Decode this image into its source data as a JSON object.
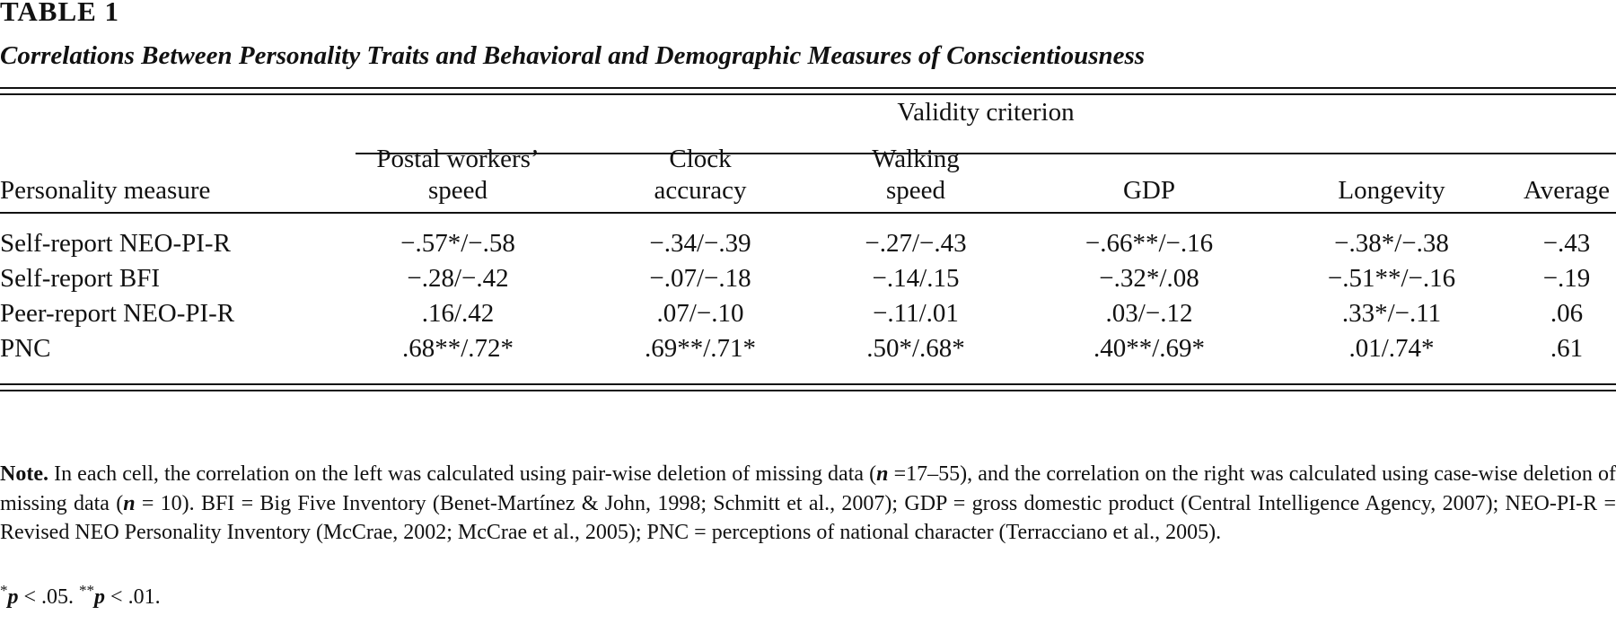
{
  "table_label": "TABLE 1",
  "table_title": "Correlations Between Personality Traits and Behavioral and Demographic Measures of Conscientiousness",
  "spanner_header": "Validity criterion",
  "row_header": "Personality measure",
  "columns": [
    {
      "line1": "Postal workers’",
      "line2": "speed"
    },
    {
      "line1": "Clock",
      "line2": "accuracy"
    },
    {
      "line1": "Walking",
      "line2": "speed"
    },
    {
      "line1": "",
      "line2": "GDP"
    },
    {
      "line1": "",
      "line2": "Longevity"
    },
    {
      "line1": "",
      "line2": "Average"
    }
  ],
  "rows": [
    {
      "label": "Self-report NEO-PI-R",
      "cells": [
        "−.57*/−.58",
        "−.34/−.39",
        "−.27/−.43",
        "−.66**/−.16",
        "−.38*/−.38",
        "−.43"
      ]
    },
    {
      "label": "Self-report BFI",
      "cells": [
        "−.28/−.42",
        "−.07/−.18",
        "−.14/.15",
        "−.32*/.08",
        "−.51**/−.16",
        "−.19"
      ]
    },
    {
      "label": "Peer-report NEO-PI-R",
      "cells": [
        ".16/.42",
        ".07/−.10",
        "−.11/.01",
        ".03/−.12",
        ".33*/−.11",
        ".06"
      ]
    },
    {
      "label": "PNC",
      "cells": [
        ".68**/.72*",
        ".69**/.71*",
        ".50*/.68*",
        ".40**/.69*",
        ".01/.74*",
        ".61"
      ]
    }
  ],
  "note": {
    "lead": "Note.",
    "seg1": " In each cell, the correlation on the left was calculated using pair-wise deletion of missing data (",
    "n_symbol": "n",
    "seg2": " =17–55), and the correlation on the right was calculated using case-wise deletion of missing data (",
    "n_symbol2": "n",
    "seg3": " = 10). BFI = Big Five Inventory (Benet-Martínez & John, 1998; Schmitt et al., 2007); GDP = gross domestic product (Central Intelligence Agency, 2007); NEO-PI-R = Revised NEO Personality Inventory (McCrae, 2002; McCrae et al., 2005); PNC = perceptions of national character (Terracciano et al., 2005)."
  },
  "significance": {
    "a_star": "*",
    "a_p": "p",
    "a_rest": " < .05. ",
    "b_star": "**",
    "b_p": "p",
    "b_rest": " < .01."
  }
}
